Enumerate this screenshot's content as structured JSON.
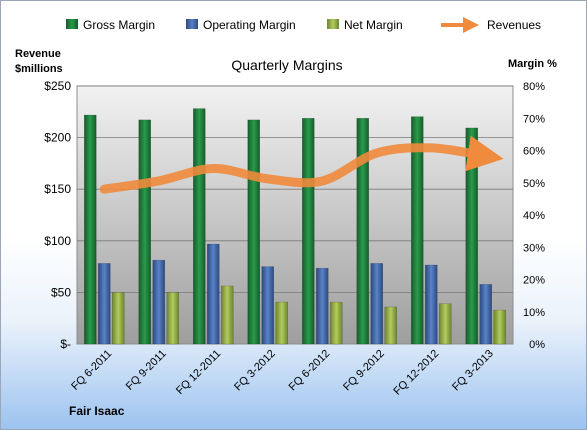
{
  "chart_data": {
    "type": "bar",
    "title": "Quarterly Margins",
    "company": "Fair Isaac",
    "left_axis_label": [
      "Revenue",
      "$millions"
    ],
    "right_axis_label": "Margin %",
    "categories": [
      "FQ 6-2011",
      "FQ 9-2011",
      "FQ 12-2011",
      "FQ 3-2012",
      "FQ 6-2012",
      "FQ 9-2012",
      "FQ 12-2012",
      "FQ 3-2013"
    ],
    "left_ticks": [
      "$-",
      "$50",
      "$100",
      "$150",
      "$200",
      "$250"
    ],
    "right_ticks": [
      "0%",
      "10%",
      "20%",
      "30%",
      "40%",
      "50%",
      "60%",
      "70%",
      "80%"
    ],
    "ylim_left": [
      0,
      250
    ],
    "ylim_right": [
      0,
      80
    ],
    "series": [
      {
        "name": "Gross Margin",
        "kind": "bar",
        "axis": "right",
        "color": "#1f7a3a",
        "values": [
          71,
          69.5,
          73,
          69.5,
          70,
          70,
          70.5,
          67
        ]
      },
      {
        "name": "Operating Margin",
        "kind": "bar",
        "axis": "right",
        "color": "#3d63a6",
        "values": [
          25,
          26,
          31,
          24,
          23.5,
          25,
          24.5,
          18.5
        ]
      },
      {
        "name": "Net Margin",
        "kind": "bar",
        "axis": "right",
        "color": "#92ac45",
        "values": [
          16,
          16,
          18,
          13,
          13,
          11.5,
          12.5,
          10.5
        ]
      },
      {
        "name": "Revenues",
        "kind": "line",
        "axis": "left",
        "color": "#f08a3c",
        "values": [
          150,
          158,
          170,
          160,
          158,
          185,
          190,
          182
        ]
      }
    ],
    "grid": true,
    "legend_position": "top"
  }
}
